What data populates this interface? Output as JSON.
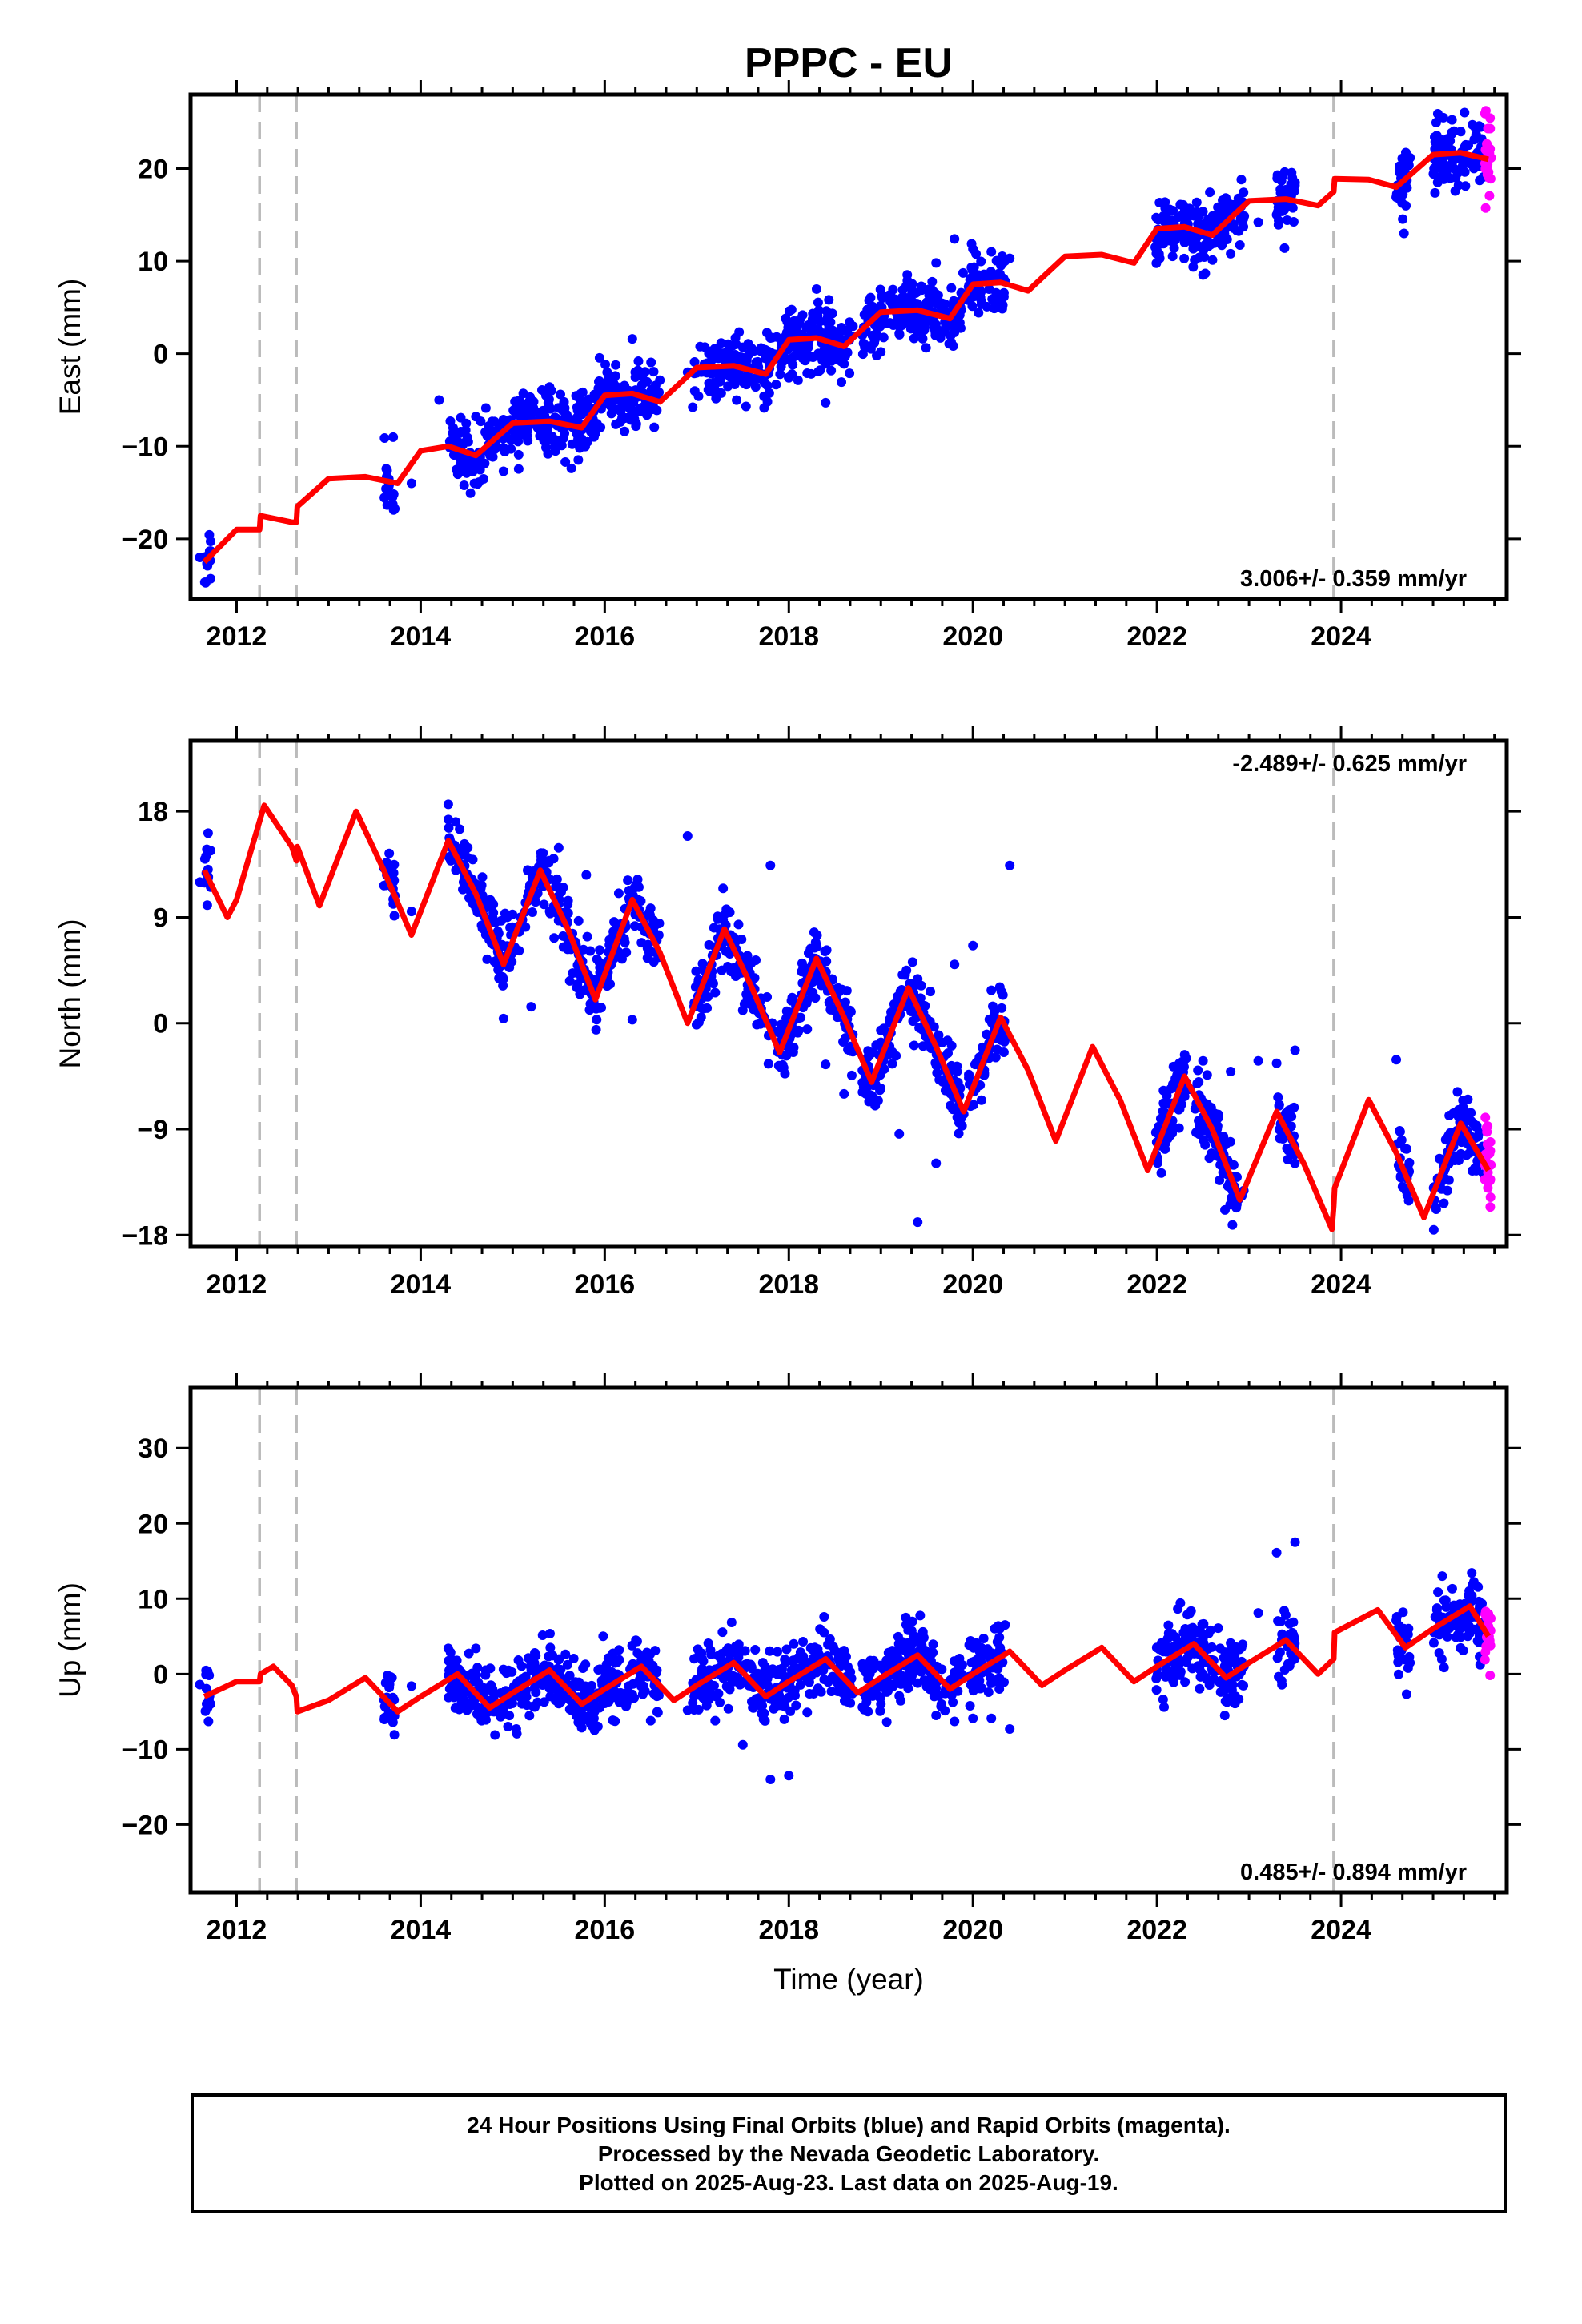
{
  "title": "PPPC - EU",
  "xlabel": "Time (year)",
  "caption": [
    "24 Hour Positions Using Final Orbits (blue) and Rapid Orbits (magenta).",
    "Processed by the Nevada Geodetic Laboratory.",
    "Plotted on 2025-Aug-23. Last data on 2025-Aug-19."
  ],
  "colors": {
    "final": "#0000ff",
    "rapid": "#ff00ff",
    "model": "#ff0000",
    "steps": "#bbbbbb"
  },
  "chart_data": [
    {
      "type": "scatter",
      "component": "east",
      "ylabel": "East (mm)",
      "rate_text": "3.006+/- 0.359 mm/yr",
      "xlim": [
        2011.5,
        2025.8
      ],
      "ylim": [
        -26.5,
        28
      ],
      "yticks": [
        -20,
        -10,
        0,
        10,
        20
      ],
      "xticks": [
        2012,
        2014,
        2016,
        2018,
        2020,
        2022,
        2024
      ],
      "step_lines": [
        2012.25,
        2012.65,
        2023.92
      ],
      "data_spans": [
        [
          2011.65,
          2011.72
        ],
        [
          2013.6,
          2013.72
        ],
        [
          2014.3,
          2016.6
        ],
        [
          2016.95,
          2018.7
        ],
        [
          2018.8,
          2019.9
        ],
        [
          2019.95,
          2020.35
        ],
        [
          2021.98,
          2022.95
        ],
        [
          2023.3,
          2023.5
        ],
        [
          2024.6,
          2024.75
        ],
        [
          2025.0,
          2025.55
        ]
      ],
      "rapid_span": [
        2025.56,
        2025.63
      ],
      "model": {
        "x": [
          2011.65,
          2012.0,
          2012.25,
          2012.26,
          2012.6,
          2012.65,
          2012.66,
          2013.0,
          2013.4,
          2013.75,
          2014.0,
          2014.3,
          2014.6,
          2015.0,
          2015.4,
          2015.75,
          2016.0,
          2016.3,
          2016.6,
          2017.0,
          2017.4,
          2017.75,
          2018.0,
          2018.3,
          2018.6,
          2019.0,
          2019.4,
          2019.75,
          2020.0,
          2020.3,
          2020.6,
          2021.0,
          2021.4,
          2021.75,
          2022.0,
          2022.3,
          2022.6,
          2023.0,
          2023.4,
          2023.75,
          2023.92,
          2023.93,
          2024.3,
          2024.6,
          2025.0,
          2025.3,
          2025.6
        ],
        "y": [
          -22.5,
          -19.0,
          -19.0,
          -17.5,
          -18.2,
          -18.2,
          -16.5,
          -13.5,
          -13.3,
          -14.0,
          -10.5,
          -10.0,
          -11.0,
          -7.5,
          -7.3,
          -8.0,
          -4.5,
          -4.3,
          -5.2,
          -1.5,
          -1.3,
          -2.2,
          1.5,
          1.7,
          0.8,
          4.5,
          4.7,
          3.8,
          7.5,
          7.7,
          6.8,
          10.5,
          10.7,
          9.8,
          13.5,
          13.7,
          12.8,
          16.5,
          16.7,
          16.0,
          17.5,
          18.9,
          18.8,
          18.0,
          21.5,
          21.7,
          21.0
        ]
      },
      "x": [
        2011.6,
        2013.9,
        2014.2,
        2014.4,
        2014.6,
        2014.9,
        2015.1,
        2015.4,
        2015.7,
        2016.0,
        2016.3,
        2016.5,
        2016.9,
        2017.2,
        2017.5,
        2017.8,
        2018.0,
        2018.2,
        2018.4,
        2018.6,
        2018.8,
        2019.0,
        2019.2,
        2019.4,
        2019.6,
        2019.8,
        2020.0,
        2020.2,
        2020.4,
        2022.2,
        2022.5,
        2022.8,
        2023.1,
        2023.3,
        2023.5,
        2024.6,
        2025.1,
        2025.3,
        2025.5
      ],
      "y": [
        -22.0,
        -14.0,
        -5.0,
        -12.5,
        -6.8,
        -12.7,
        -7.3,
        -3.6,
        -5.8,
        -4.8,
        1.6,
        -5.7,
        -2.0,
        -3.3,
        0.7,
        1.7,
        -2.6,
        -2.1,
        -5.3,
        -1.1,
        2.0,
        0.2,
        2.2,
        2.4,
        9.8,
        12.4,
        11.3,
        11.0,
        10.3,
        12.3,
        8.5,
        10.8,
        14.2,
        15.0,
        18.5,
        16.9,
        21.8,
        24.0,
        24.6
      ]
    },
    {
      "type": "scatter",
      "component": "north",
      "ylabel": "North (mm)",
      "rate_text": "-2.489+/- 0.625 mm/yr",
      "xlim": [
        2011.5,
        2025.8
      ],
      "ylim": [
        -19,
        24
      ],
      "yticks": [
        -18,
        -9,
        0,
        9,
        18
      ],
      "xticks": [
        2012,
        2014,
        2016,
        2018,
        2020,
        2022,
        2024
      ],
      "step_lines": [
        2012.25,
        2012.65,
        2023.92
      ],
      "data_spans": [
        [
          2011.65,
          2011.72
        ],
        [
          2013.6,
          2013.72
        ],
        [
          2014.3,
          2016.6
        ],
        [
          2016.95,
          2018.7
        ],
        [
          2018.8,
          2019.9
        ],
        [
          2019.95,
          2020.35
        ],
        [
          2021.98,
          2022.95
        ],
        [
          2023.3,
          2023.5
        ],
        [
          2024.6,
          2024.75
        ],
        [
          2025.0,
          2025.55
        ]
      ],
      "rapid_span": [
        2025.56,
        2025.63
      ],
      "model": {
        "x": [
          2011.65,
          2011.9,
          2012.0,
          2012.3,
          2012.6,
          2012.65,
          2012.66,
          2012.9,
          2013.3,
          2013.6,
          2013.9,
          2014.3,
          2014.6,
          2014.9,
          2015.3,
          2015.6,
          2015.9,
          2016.3,
          2016.6,
          2016.9,
          2017.3,
          2017.6,
          2017.9,
          2018.3,
          2018.6,
          2018.9,
          2019.3,
          2019.6,
          2019.9,
          2020.3,
          2020.6,
          2020.9,
          2021.3,
          2021.6,
          2021.9,
          2022.3,
          2022.6,
          2022.9,
          2023.3,
          2023.6,
          2023.9,
          2023.92,
          2023.93,
          2024.3,
          2024.6,
          2024.9,
          2025.3,
          2025.6
        ],
        "y": [
          13.0,
          9.0,
          10.5,
          18.5,
          15.0,
          13.8,
          15.0,
          10.0,
          18.0,
          13.0,
          7.5,
          15.5,
          11.0,
          5.0,
          13.0,
          8.0,
          2.0,
          10.5,
          6.0,
          0.0,
          8.0,
          3.0,
          -2.5,
          5.5,
          0.5,
          -5.0,
          3.0,
          -2.0,
          -7.5,
          0.5,
          -4.0,
          -10.0,
          -2.0,
          -6.5,
          -12.5,
          -4.5,
          -9.0,
          -15.0,
          -7.5,
          -12.0,
          -17.5,
          -15.5,
          -14.0,
          -6.5,
          -11.0,
          -16.5,
          -8.5,
          -12.5
        ]
      },
      "x": [
        2011.6,
        2013.9,
        2014.3,
        2014.6,
        2014.9,
        2015.2,
        2015.5,
        2015.8,
        2016.0,
        2016.3,
        2016.5,
        2016.9,
        2017.2,
        2017.5,
        2017.8,
        2018.0,
        2018.2,
        2018.4,
        2018.6,
        2018.8,
        2019.0,
        2019.2,
        2019.4,
        2019.6,
        2019.8,
        2020.0,
        2020.2,
        2020.4,
        2022.2,
        2022.5,
        2022.8,
        2023.1,
        2023.3,
        2023.5,
        2024.6,
        2025.1,
        2025.3,
        2025.5
      ],
      "y": [
        12.0,
        9.5,
        18.6,
        9.8,
        0.4,
        1.4,
        14.9,
        12.6,
        3.5,
        0.3,
        8.0,
        15.9,
        2.6,
        1.1,
        13.4,
        0.8,
        -0.5,
        -3.5,
        -6.0,
        -4.0,
        -0.6,
        -9.4,
        -16.9,
        -11.9,
        5.0,
        6.6,
        2.8,
        13.4,
        -4.7,
        -3.2,
        -4.1,
        -3.2,
        -3.4,
        -2.3,
        -3.1,
        -13.4,
        -11.1,
        -9.3
      ]
    },
    {
      "type": "scatter",
      "component": "up",
      "ylabel": "Up (mm)",
      "rate_text": "0.485+/- 0.894 mm/yr",
      "xlim": [
        2011.5,
        2025.8
      ],
      "ylim": [
        -29,
        38
      ],
      "yticks": [
        -20,
        -10,
        0,
        10,
        20,
        30
      ],
      "xticks": [
        2012,
        2014,
        2016,
        2018,
        2020,
        2022,
        2024
      ],
      "step_lines": [
        2012.25,
        2012.65,
        2023.92
      ],
      "data_spans": [
        [
          2011.65,
          2011.72
        ],
        [
          2013.6,
          2013.72
        ],
        [
          2014.3,
          2016.6
        ],
        [
          2016.95,
          2018.7
        ],
        [
          2018.8,
          2019.9
        ],
        [
          2019.95,
          2020.35
        ],
        [
          2021.98,
          2022.95
        ],
        [
          2023.3,
          2023.5
        ],
        [
          2024.6,
          2024.75
        ],
        [
          2025.0,
          2025.55
        ]
      ],
      "rapid_span": [
        2025.56,
        2025.63
      ],
      "model": {
        "x": [
          2011.65,
          2012.0,
          2012.25,
          2012.26,
          2012.4,
          2012.6,
          2012.65,
          2012.66,
          2013.0,
          2013.4,
          2013.75,
          2014.0,
          2014.4,
          2014.75,
          2015.0,
          2015.4,
          2015.75,
          2016.0,
          2016.4,
          2016.75,
          2017.0,
          2017.4,
          2017.75,
          2018.0,
          2018.4,
          2018.75,
          2019.0,
          2019.4,
          2019.75,
          2020.0,
          2020.4,
          2020.75,
          2021.0,
          2021.4,
          2021.75,
          2022.0,
          2022.4,
          2022.75,
          2023.0,
          2023.4,
          2023.75,
          2023.92,
          2023.93,
          2024.4,
          2024.7,
          2025.0,
          2025.4,
          2025.6
        ],
        "y": [
          -3.0,
          -1.0,
          -1.0,
          0.0,
          1.0,
          -1.5,
          -3.0,
          -5.0,
          -3.5,
          -0.5,
          -5.0,
          -3.0,
          0.0,
          -4.5,
          -2.5,
          0.5,
          -4.0,
          -2.0,
          1.0,
          -3.5,
          -1.5,
          1.5,
          -3.0,
          -1.0,
          2.0,
          -2.5,
          -0.5,
          2.5,
          -2.0,
          0.0,
          3.0,
          -1.5,
          0.5,
          3.5,
          -1.0,
          1.0,
          4.0,
          -0.5,
          1.5,
          4.5,
          0.0,
          2.0,
          5.5,
          8.5,
          3.5,
          6.0,
          9.0,
          5.0
        ]
      },
      "x": [
        2011.6,
        2013.9,
        2014.3,
        2014.6,
        2014.9,
        2015.2,
        2015.5,
        2015.8,
        2016.0,
        2016.3,
        2016.5,
        2016.9,
        2017.2,
        2017.5,
        2017.8,
        2018.0,
        2018.2,
        2018.4,
        2018.6,
        2018.8,
        2019.0,
        2019.2,
        2019.4,
        2019.6,
        2019.8,
        2020.0,
        2020.2,
        2020.4,
        2022.2,
        2022.5,
        2022.8,
        2023.1,
        2023.3,
        2023.5,
        2024.6,
        2025.1,
        2025.3,
        2025.5
      ],
      "y": [
        -1.4,
        -1.6,
        3.4,
        3.4,
        0.6,
        1.7,
        -2.4,
        -4.0,
        -3.9,
        -2.7,
        -6.2,
        -4.8,
        -6.2,
        -9.4,
        -14.0,
        -13.5,
        -5.1,
        2.2,
        3.1,
        -4.4,
        -4.0,
        -2.9,
        -1.2,
        -5.5,
        -6.3,
        -5.9,
        -5.9,
        -7.3,
        4.9,
        4.7,
        4.1,
        8.1,
        16.1,
        17.5,
        7.1,
        13.0,
        4.9,
        4.2
      ]
    }
  ]
}
